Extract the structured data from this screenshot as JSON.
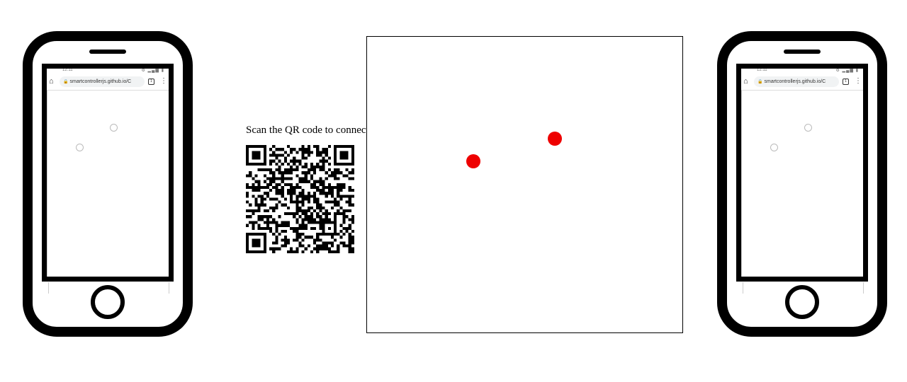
{
  "phones": {
    "url": "smartcontrollerjs.github.io/C",
    "time": "12:11",
    "status_icons": "⚙ ▂▄▆ ▮",
    "tab_count": "1",
    "kebab": "⋮",
    "home_glyph": "⌂",
    "lock_glyph": "🔒"
  },
  "qr": {
    "caption": "Scan the QR code to connect!"
  },
  "game": {
    "ball_color": "#ee0000",
    "ball_count": 2
  },
  "icons": [
    "home-icon",
    "lock-icon",
    "tabs-icon",
    "kebab-menu-icon",
    "qr-code-icon"
  ]
}
